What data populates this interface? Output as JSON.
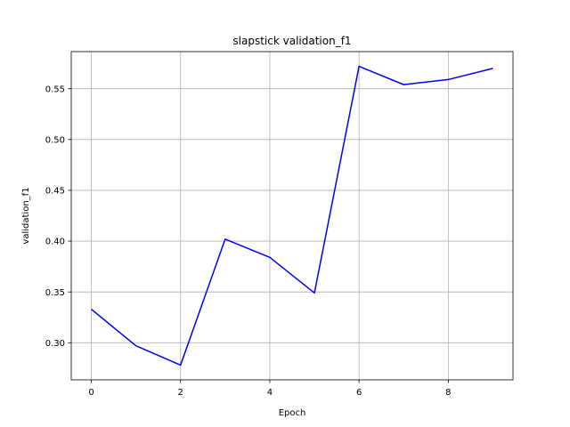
{
  "chart_data": {
    "type": "line",
    "title": "slapstick validation_f1",
    "xlabel": "Epoch",
    "ylabel": "validation_f1",
    "grid": true,
    "xlim": [
      -0.45,
      9.45
    ],
    "ylim": [
      0.2635,
      0.5865
    ],
    "x_ticks": [
      0,
      2,
      4,
      6,
      8
    ],
    "x_tick_labels": [
      "0",
      "2",
      "4",
      "6",
      "8"
    ],
    "y_ticks": [
      0.3,
      0.35,
      0.4,
      0.45,
      0.5,
      0.55
    ],
    "y_tick_labels": [
      "0.30",
      "0.35",
      "0.40",
      "0.45",
      "0.50",
      "0.55"
    ],
    "series": [
      {
        "color": "#0000ff",
        "x": [
          0,
          1,
          2,
          3,
          4,
          5,
          6,
          7,
          8,
          9
        ],
        "values": [
          0.333,
          0.297,
          0.278,
          0.402,
          0.384,
          0.349,
          0.572,
          0.554,
          0.559,
          0.57
        ]
      }
    ]
  }
}
